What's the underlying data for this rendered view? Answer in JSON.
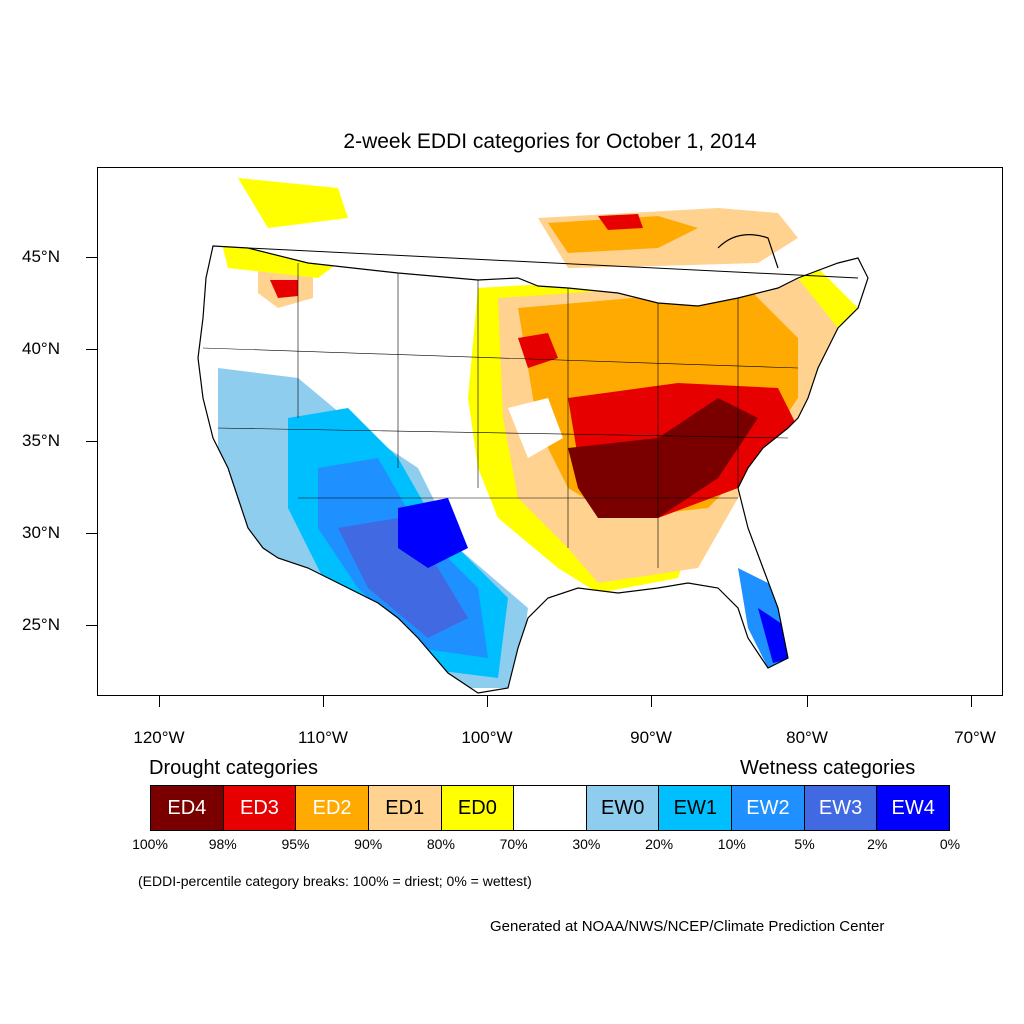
{
  "title": "2-week EDDI categories for October 1, 2014",
  "map": {
    "lat_labels": [
      "45°N",
      "40°N",
      "35°N",
      "30°N",
      "25°N"
    ],
    "lon_labels": [
      "120°W",
      "110°W",
      "100°W",
      "90°W",
      "80°W",
      "70°W"
    ]
  },
  "legend": {
    "drought_heading": "Drought categories",
    "wetness_heading": "Wetness categories",
    "categories": [
      {
        "label": "ED4",
        "color": "#7a0000",
        "text_color": "#ffffff"
      },
      {
        "label": "ED3",
        "color": "#e60000",
        "text_color": "#ffffff"
      },
      {
        "label": "ED2",
        "color": "#ffaa00",
        "text_color": "#ffffff"
      },
      {
        "label": "ED1",
        "color": "#ffd38f",
        "text_color": "#000000"
      },
      {
        "label": "ED0",
        "color": "#ffff00",
        "text_color": "#000000"
      },
      {
        "label": "",
        "color": "#ffffff",
        "text_color": "#000000"
      },
      {
        "label": "EW0",
        "color": "#8fcdee",
        "text_color": "#000000"
      },
      {
        "label": "EW1",
        "color": "#00bfff",
        "text_color": "#000000"
      },
      {
        "label": "EW2",
        "color": "#1e90ff",
        "text_color": "#ffffff"
      },
      {
        "label": "EW3",
        "color": "#4169e1",
        "text_color": "#ffffff"
      },
      {
        "label": "EW4",
        "color": "#0000ff",
        "text_color": "#ffffff"
      }
    ],
    "breaks": [
      "100%",
      "98%",
      "95%",
      "90%",
      "80%",
      "70%",
      "30%",
      "20%",
      "10%",
      "5%",
      "2%",
      "0%"
    ],
    "note": "(EDDI-percentile category breaks: 100% = driest; 0% = wettest)"
  },
  "credit": "Generated at NOAA/NWS/NCEP/Climate Prediction Center"
}
